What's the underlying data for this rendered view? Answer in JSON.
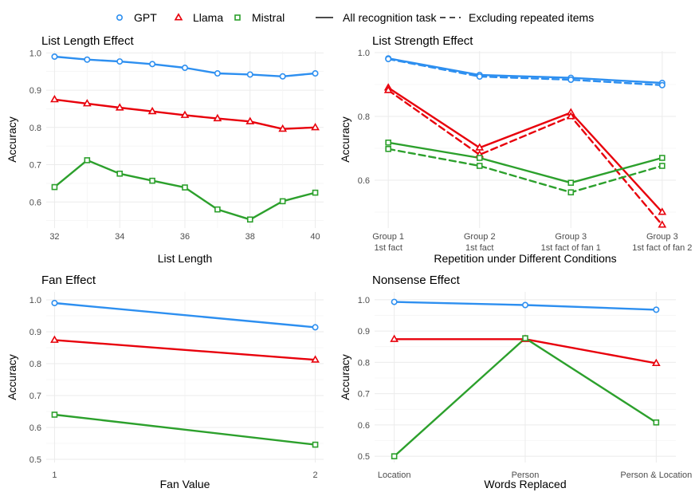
{
  "legend": {
    "models": [
      {
        "name": "GPT",
        "color": "#2d8ff0",
        "marker": "circle"
      },
      {
        "name": "Llama",
        "color": "#e8000b",
        "marker": "triangle"
      },
      {
        "name": "Mistral",
        "color": "#2ca02c",
        "marker": "square"
      }
    ],
    "linetypes": [
      {
        "name": "All recognition task",
        "style": "solid"
      },
      {
        "name": "Excluding repeated items",
        "style": "dashed"
      }
    ]
  },
  "chart_data": [
    {
      "type": "line",
      "title": "List Length Effect",
      "xlabel": "List Length",
      "ylabel": "Accuracy",
      "x": [
        32,
        33,
        34,
        35,
        36,
        37,
        38,
        39,
        40
      ],
      "xticks": [
        "32",
        "34",
        "36",
        "38",
        "40"
      ],
      "xtick_values": [
        32,
        34,
        36,
        38,
        40
      ],
      "xlim": [
        32,
        40
      ],
      "ylim": [
        0.53,
        1.005
      ],
      "yticks": [
        "0.6",
        "0.7",
        "0.8",
        "0.9",
        "1.0"
      ],
      "ytick_values": [
        0.6,
        0.7,
        0.8,
        0.9,
        1.0
      ],
      "series": [
        {
          "name": "GPT",
          "style": "solid",
          "values": [
            0.99,
            0.982,
            0.977,
            0.97,
            0.96,
            0.945,
            0.942,
            0.937,
            0.945
          ]
        },
        {
          "name": "Llama",
          "style": "solid",
          "values": [
            0.875,
            0.864,
            0.853,
            0.843,
            0.833,
            0.824,
            0.816,
            0.796,
            0.8
          ]
        },
        {
          "name": "Mistral",
          "style": "solid",
          "values": [
            0.64,
            0.712,
            0.676,
            0.657,
            0.639,
            0.58,
            0.553,
            0.602,
            0.625
          ]
        }
      ]
    },
    {
      "type": "line",
      "title": "List Strength Effect",
      "xlabel": "Repetition under Different Conditions",
      "ylabel": "Accuracy",
      "categories": [
        "Group 1\n1st fact",
        "Group 2\n1st fact",
        "Group 3\n1st fact of fan 1",
        "Group 3\n1st fact of fan 2"
      ],
      "ylim": [
        0.45,
        1.005
      ],
      "yticks": [
        "0.6",
        "0.8",
        "1.0"
      ],
      "ytick_values": [
        0.6,
        0.8,
        1.0
      ],
      "series": [
        {
          "name": "GPT",
          "style": "solid",
          "values": [
            0.982,
            0.93,
            0.921,
            0.905
          ]
        },
        {
          "name": "GPT",
          "style": "dashed",
          "values": [
            0.98,
            0.925,
            0.915,
            0.898
          ]
        },
        {
          "name": "Llama",
          "style": "solid",
          "values": [
            0.89,
            0.702,
            0.812,
            0.5
          ]
        },
        {
          "name": "Llama",
          "style": "dashed",
          "values": [
            0.882,
            0.68,
            0.8,
            0.46
          ]
        },
        {
          "name": "Mistral",
          "style": "solid",
          "values": [
            0.718,
            0.67,
            0.592,
            0.67
          ]
        },
        {
          "name": "Mistral",
          "style": "dashed",
          "values": [
            0.698,
            0.645,
            0.562,
            0.645
          ]
        }
      ]
    },
    {
      "type": "line",
      "title": "Fan Effect",
      "xlabel": "Fan Value",
      "ylabel": "Accuracy",
      "x": [
        1,
        2
      ],
      "xticks": [
        "1",
        "2"
      ],
      "xtick_values": [
        1,
        2
      ],
      "xlim": [
        1,
        2
      ],
      "ylim": [
        0.49,
        1.025
      ],
      "yticks": [
        "0.5",
        "0.6",
        "0.7",
        "0.8",
        "0.9",
        "1.0"
      ],
      "ytick_values": [
        0.5,
        0.6,
        0.7,
        0.8,
        0.9,
        1.0
      ],
      "series": [
        {
          "name": "GPT",
          "style": "solid",
          "values": [
            0.99,
            0.914
          ]
        },
        {
          "name": "Llama",
          "style": "solid",
          "values": [
            0.874,
            0.812
          ]
        },
        {
          "name": "Mistral",
          "style": "solid",
          "values": [
            0.64,
            0.546
          ]
        }
      ]
    },
    {
      "type": "line",
      "title": "Nonsense Effect",
      "xlabel": "Words Replaced",
      "ylabel": "Accuracy",
      "categories": [
        "Location",
        "Person",
        "Person & Location"
      ],
      "ylim": [
        0.48,
        1.025
      ],
      "yticks": [
        "0.5",
        "0.6",
        "0.7",
        "0.8",
        "0.9",
        "1.0"
      ],
      "ytick_values": [
        0.5,
        0.6,
        0.7,
        0.8,
        0.9,
        1.0
      ],
      "series": [
        {
          "name": "GPT",
          "style": "solid",
          "values": [
            0.993,
            0.983,
            0.968
          ]
        },
        {
          "name": "Llama",
          "style": "solid",
          "values": [
            0.874,
            0.874,
            0.797
          ]
        },
        {
          "name": "Mistral",
          "style": "solid",
          "values": [
            0.5,
            0.877,
            0.608
          ]
        }
      ]
    }
  ]
}
